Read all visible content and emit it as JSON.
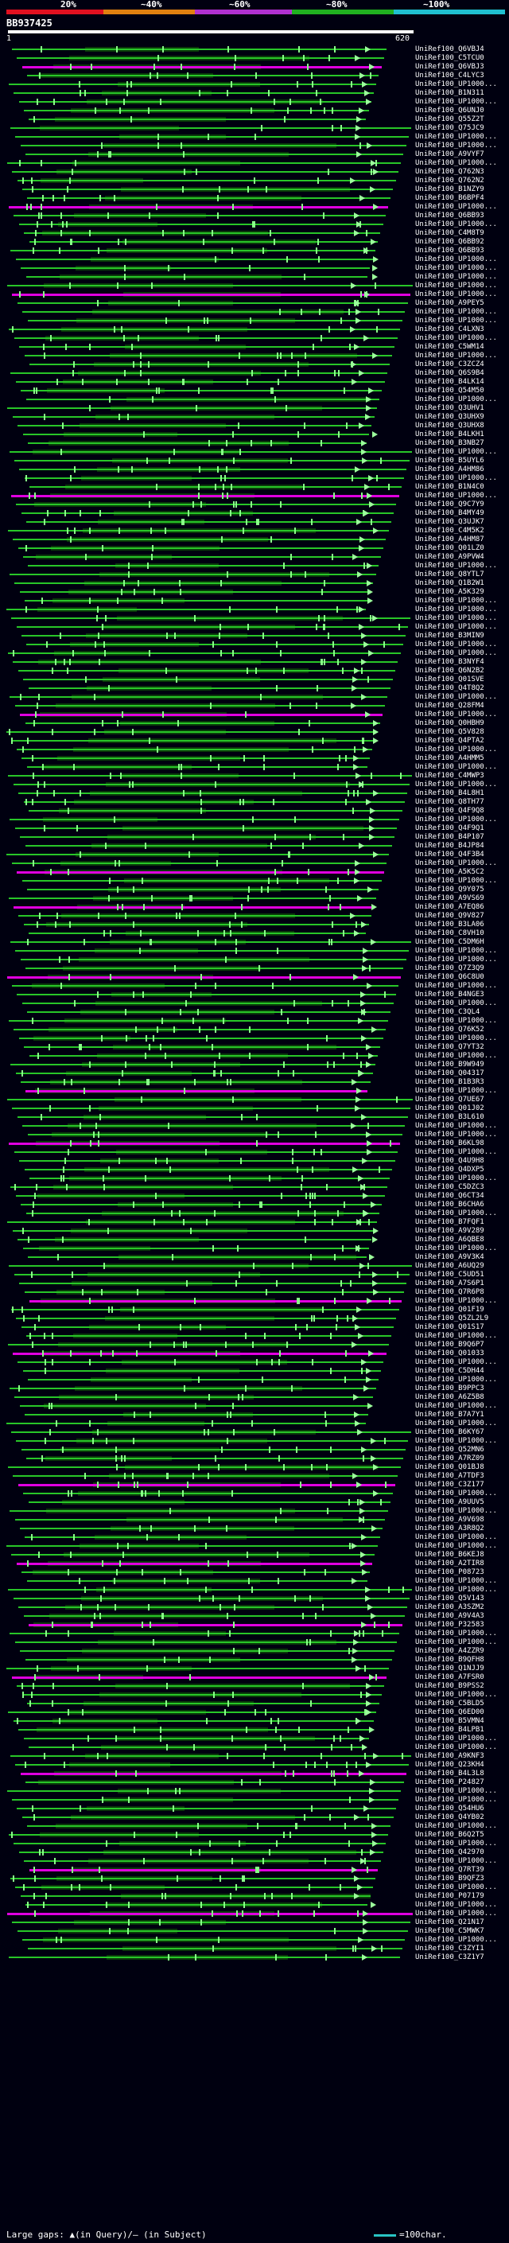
{
  "header": {
    "percent_labels": [
      "20%",
      "~40%",
      "~60%",
      "~80%",
      "~100%"
    ],
    "scale_colors": [
      "#e01020",
      "#e08010",
      "#b030d0",
      "#20b020",
      "#20c0d0"
    ],
    "query_id": "BB937425",
    "axis_start": "1",
    "axis_end": "620"
  },
  "hits": [
    {
      "label": "UniRef100_Q6VBJ4",
      "kind": "green"
    },
    {
      "label": "UniRef100_C5TCU0",
      "kind": "green"
    },
    {
      "label": "UniRef100_Q6VBJ3",
      "kind": "magenta"
    },
    {
      "label": "UniRef100_C4LYC3",
      "kind": "green"
    },
    {
      "label": "UniRef100_UP1000...",
      "kind": "green"
    },
    {
      "label": "UniRef100_B1N311",
      "kind": "green"
    },
    {
      "label": "UniRef100_UP1000...",
      "kind": "green"
    },
    {
      "label": "UniRef100_Q6UNJ0",
      "kind": "green"
    },
    {
      "label": "UniRef100_Q55Z2T",
      "kind": "green"
    },
    {
      "label": "UniRef100_Q75JC9",
      "kind": "green"
    },
    {
      "label": "UniRef100_UP1000...",
      "kind": "green"
    },
    {
      "label": "UniRef100_UP1000...",
      "kind": "green"
    },
    {
      "label": "UniRef100_A9VYF7",
      "kind": "green"
    },
    {
      "label": "UniRef100_UP1000...",
      "kind": "green"
    },
    {
      "label": "UniRef100_Q762N3",
      "kind": "green"
    },
    {
      "label": "UniRef100_Q762N2",
      "kind": "green"
    },
    {
      "label": "UniRef100_B1NZY9",
      "kind": "green"
    },
    {
      "label": "UniRef100_B6BPF4",
      "kind": "green"
    },
    {
      "label": "UniRef100_UP1000...",
      "kind": "magenta"
    },
    {
      "label": "UniRef100_Q6BB93",
      "kind": "green"
    },
    {
      "label": "UniRef100_UP1000...",
      "kind": "green"
    },
    {
      "label": "UniRef100_C4M8T9",
      "kind": "green"
    },
    {
      "label": "UniRef100_Q6BB92",
      "kind": "green"
    },
    {
      "label": "UniRef100_Q6BB93",
      "kind": "green"
    },
    {
      "label": "UniRef100_UP1000...",
      "kind": "green"
    },
    {
      "label": "UniRef100_UP1000...",
      "kind": "green"
    },
    {
      "label": "UniRef100_UP1000...",
      "kind": "green"
    },
    {
      "label": "UniRef100_UP1000...",
      "kind": "green"
    },
    {
      "label": "UniRef100_UP1000...",
      "kind": "magenta"
    },
    {
      "label": "UniRef100_A9PEY5",
      "kind": "green"
    },
    {
      "label": "UniRef100_UP1000...",
      "kind": "green"
    },
    {
      "label": "UniRef100_UP1000...",
      "kind": "green"
    },
    {
      "label": "UniRef100_C4LXN3",
      "kind": "green"
    },
    {
      "label": "UniRef100_UP1000...",
      "kind": "green"
    },
    {
      "label": "UniRef100_C5WM14",
      "kind": "green"
    },
    {
      "label": "UniRef100_UP1000...",
      "kind": "green"
    },
    {
      "label": "UniRef100_C3ZCZ4",
      "kind": "green"
    },
    {
      "label": "UniRef100_Q6S9B4",
      "kind": "green"
    },
    {
      "label": "UniRef100_B4LK14",
      "kind": "green"
    },
    {
      "label": "UniRef100_Q54M50",
      "kind": "green"
    },
    {
      "label": "UniRef100_UP1000...",
      "kind": "green"
    },
    {
      "label": "UniRef100_Q3UHV1",
      "kind": "green"
    },
    {
      "label": "UniRef100_Q3UHX9",
      "kind": "green"
    },
    {
      "label": "UniRef100_Q3UHX8",
      "kind": "green"
    },
    {
      "label": "UniRef100_B4LKH1",
      "kind": "green"
    },
    {
      "label": "UniRef100_B3NB27",
      "kind": "green"
    },
    {
      "label": "UniRef100_UP1000...",
      "kind": "green"
    },
    {
      "label": "UniRef100_B5UYL6",
      "kind": "green"
    },
    {
      "label": "UniRef100_A4HM86",
      "kind": "green"
    },
    {
      "label": "UniRef100_UP1000...",
      "kind": "green"
    },
    {
      "label": "UniRef100_B1N4C0",
      "kind": "green"
    },
    {
      "label": "UniRef100_UP1000...",
      "kind": "magenta"
    },
    {
      "label": "UniRef100_Q9C7Y9",
      "kind": "green"
    },
    {
      "label": "UniRef100_B4MY49",
      "kind": "green"
    },
    {
      "label": "UniRef100_Q3UJK7",
      "kind": "green"
    },
    {
      "label": "UniRef100_C4M5K2",
      "kind": "green"
    },
    {
      "label": "UniRef100_A4HM87",
      "kind": "green"
    },
    {
      "label": "UniRef100_Q01LZ0",
      "kind": "green"
    },
    {
      "label": "UniRef100_A9PVW4",
      "kind": "green"
    },
    {
      "label": "UniRef100_UP1000...",
      "kind": "green"
    },
    {
      "label": "UniRef100_Q8YTL7",
      "kind": "green"
    },
    {
      "label": "UniRef100_Q1B2W1",
      "kind": "green"
    },
    {
      "label": "UniRef100_A5K329",
      "kind": "green"
    },
    {
      "label": "UniRef100_UP1000...",
      "kind": "green"
    },
    {
      "label": "UniRef100_UP1000...",
      "kind": "green"
    },
    {
      "label": "UniRef100_UP1000...",
      "kind": "green"
    },
    {
      "label": "UniRef100_UP1000...",
      "kind": "green"
    },
    {
      "label": "UniRef100_B3MIN9",
      "kind": "green"
    },
    {
      "label": "UniRef100_UP1000...",
      "kind": "green"
    },
    {
      "label": "UniRef100_UP1000...",
      "kind": "green"
    },
    {
      "label": "UniRef100_B3NYF4",
      "kind": "green"
    },
    {
      "label": "UniRef100_Q6N2B2",
      "kind": "green"
    },
    {
      "label": "UniRef100_Q01SVE",
      "kind": "green"
    },
    {
      "label": "UniRef100_Q4T8Q2",
      "kind": "green"
    },
    {
      "label": "UniRef100_UP1000...",
      "kind": "green"
    },
    {
      "label": "UniRef100_Q28FM4",
      "kind": "green"
    },
    {
      "label": "UniRef100_UP1000...",
      "kind": "magenta"
    },
    {
      "label": "UniRef100_Q0HBH9",
      "kind": "green"
    },
    {
      "label": "UniRef100_Q5V828",
      "kind": "green"
    },
    {
      "label": "UniRef100_Q4PTA2",
      "kind": "green"
    },
    {
      "label": "UniRef100_UP1000...",
      "kind": "green"
    },
    {
      "label": "UniRef100_A4HMM5",
      "kind": "green"
    },
    {
      "label": "UniRef100_UP1000...",
      "kind": "green"
    },
    {
      "label": "UniRef100_C4MWP3",
      "kind": "green"
    },
    {
      "label": "UniRef100_UP1000...",
      "kind": "green"
    },
    {
      "label": "UniRef100_B4L8H1",
      "kind": "green"
    },
    {
      "label": "UniRef100_Q8TH77",
      "kind": "green"
    },
    {
      "label": "UniRef100_Q4F9Q8",
      "kind": "green"
    },
    {
      "label": "UniRef100_UP1000...",
      "kind": "green"
    },
    {
      "label": "UniRef100_Q4F9Q1",
      "kind": "green"
    },
    {
      "label": "UniRef100_B4P107",
      "kind": "green"
    },
    {
      "label": "UniRef100_B4JP84",
      "kind": "green"
    },
    {
      "label": "UniRef100_Q4F3B4",
      "kind": "green"
    },
    {
      "label": "UniRef100_UP1000...",
      "kind": "green"
    },
    {
      "label": "UniRef100_A5K5C2",
      "kind": "magenta"
    },
    {
      "label": "UniRef100_UP1000...",
      "kind": "green"
    },
    {
      "label": "UniRef100_Q9Y075",
      "kind": "green"
    },
    {
      "label": "UniRef100_A9VS69",
      "kind": "green"
    },
    {
      "label": "UniRef100_A7EQ86",
      "kind": "magenta"
    },
    {
      "label": "UniRef100_Q9V827",
      "kind": "green"
    },
    {
      "label": "UniRef100_B3LA06",
      "kind": "green"
    },
    {
      "label": "UniRef100_C8VH10",
      "kind": "green"
    },
    {
      "label": "UniRef100_C5DM6H",
      "kind": "green"
    },
    {
      "label": "UniRef100_UP1000...",
      "kind": "green"
    },
    {
      "label": "UniRef100_UP1000...",
      "kind": "green"
    },
    {
      "label": "UniRef100_Q7Z3Q9",
      "kind": "green"
    },
    {
      "label": "UniRef100_Q6C8U0",
      "kind": "magenta"
    },
    {
      "label": "UniRef100_UP1000...",
      "kind": "green"
    },
    {
      "label": "UniRef100_B4NGE3",
      "kind": "green"
    },
    {
      "label": "UniRef100_UP1000...",
      "kind": "green"
    },
    {
      "label": "UniRef100_C3QL4",
      "kind": "green"
    },
    {
      "label": "UniRef100_UP1000...",
      "kind": "green"
    },
    {
      "label": "UniRef100_Q76K52",
      "kind": "green"
    },
    {
      "label": "UniRef100_UP1000...",
      "kind": "green"
    },
    {
      "label": "UniRef100_Q7YT32",
      "kind": "green"
    },
    {
      "label": "UniRef100_UP1000...",
      "kind": "green"
    },
    {
      "label": "UniRef100_B9W949",
      "kind": "green"
    },
    {
      "label": "UniRef100_Q04317",
      "kind": "green"
    },
    {
      "label": "UniRef100_B1B3R3",
      "kind": "green"
    },
    {
      "label": "UniRef100_UP1000...",
      "kind": "magenta"
    },
    {
      "label": "UniRef100_Q7UE67",
      "kind": "green"
    },
    {
      "label": "UniRef100_Q01J02",
      "kind": "green"
    },
    {
      "label": "UniRef100_B3L610",
      "kind": "green"
    },
    {
      "label": "UniRef100_UP1000...",
      "kind": "green"
    },
    {
      "label": "UniRef100_UP1000...",
      "kind": "green"
    },
    {
      "label": "UniRef100_B6KL98",
      "kind": "magenta"
    },
    {
      "label": "UniRef100_UP1000...",
      "kind": "green"
    },
    {
      "label": "UniRef100_Q4U9H8",
      "kind": "green"
    },
    {
      "label": "UniRef100_Q4DXP5",
      "kind": "green"
    },
    {
      "label": "UniRef100_UP1000...",
      "kind": "green"
    },
    {
      "label": "UniRef100_C5DZC3",
      "kind": "green"
    },
    {
      "label": "UniRef100_Q6CT34",
      "kind": "green"
    },
    {
      "label": "UniRef100_B6CHA6",
      "kind": "green"
    },
    {
      "label": "UniRef100_UP1000...",
      "kind": "green"
    },
    {
      "label": "UniRef100_B7FQF1",
      "kind": "green"
    },
    {
      "label": "UniRef100_A9V289",
      "kind": "green"
    },
    {
      "label": "UniRef100_A6QBE8",
      "kind": "green"
    },
    {
      "label": "UniRef100_UP1000...",
      "kind": "green"
    },
    {
      "label": "UniRef100_A9V3K4",
      "kind": "green"
    },
    {
      "label": "UniRef100_A6UQ29",
      "kind": "green"
    },
    {
      "label": "UniRef100_C5UD51",
      "kind": "green"
    },
    {
      "label": "UniRef100_A7S6P1",
      "kind": "green"
    },
    {
      "label": "UniRef100_Q7R6P8",
      "kind": "green"
    },
    {
      "label": "UniRef100_UP1000...",
      "kind": "magenta"
    },
    {
      "label": "UniRef100_Q01F19",
      "kind": "green"
    },
    {
      "label": "UniRef100_Q5ZL2L9",
      "kind": "green"
    },
    {
      "label": "UniRef100_Q01S17",
      "kind": "green"
    },
    {
      "label": "UniRef100_UP1000...",
      "kind": "green"
    },
    {
      "label": "UniRef100_B9Q6P7",
      "kind": "green"
    },
    {
      "label": "UniRef100_Q01033",
      "kind": "magenta"
    },
    {
      "label": "UniRef100_UP1000...",
      "kind": "green"
    },
    {
      "label": "UniRef100_C5DH44",
      "kind": "green"
    },
    {
      "label": "UniRef100_UP1000...",
      "kind": "green"
    },
    {
      "label": "UniRef100_B9PPC3",
      "kind": "green"
    },
    {
      "label": "UniRef100_A6Z5B8",
      "kind": "green"
    },
    {
      "label": "UniRef100_UP1000...",
      "kind": "green"
    },
    {
      "label": "UniRef100_B7A7Y1",
      "kind": "green"
    },
    {
      "label": "UniRef100_UP1000...",
      "kind": "green"
    },
    {
      "label": "UniRef100_B6KY67",
      "kind": "green"
    },
    {
      "label": "UniRef100_UP1000...",
      "kind": "green"
    },
    {
      "label": "UniRef100_Q52MN6",
      "kind": "green"
    },
    {
      "label": "UniRef100_A7RZ09",
      "kind": "green"
    },
    {
      "label": "UniRef100_Q01BJ8",
      "kind": "green"
    },
    {
      "label": "UniRef100_A7TDF3",
      "kind": "green"
    },
    {
      "label": "UniRef100_C3Z177",
      "kind": "magenta"
    },
    {
      "label": "UniRef100_UP1000...",
      "kind": "green"
    },
    {
      "label": "UniRef100_A9UUV5",
      "kind": "green"
    },
    {
      "label": "UniRef100_UP1000...",
      "kind": "green"
    },
    {
      "label": "UniRef100_A9V698",
      "kind": "green"
    },
    {
      "label": "UniRef100_A3R8Q2",
      "kind": "green"
    },
    {
      "label": "UniRef100_UP1000...",
      "kind": "green"
    },
    {
      "label": "UniRef100_UP1000...",
      "kind": "green"
    },
    {
      "label": "UniRef100_B6KEJ8",
      "kind": "green"
    },
    {
      "label": "UniRef100_A2TIR8",
      "kind": "magenta"
    },
    {
      "label": "UniRef100_P08723",
      "kind": "green"
    },
    {
      "label": "UniRef100_UP1000...",
      "kind": "green"
    },
    {
      "label": "UniRef100_UP1000...",
      "kind": "green"
    },
    {
      "label": "UniRef100_Q5V143",
      "kind": "green"
    },
    {
      "label": "UniRef100_A3SZM2",
      "kind": "green"
    },
    {
      "label": "UniRef100_A9V4A3",
      "kind": "green"
    },
    {
      "label": "UniRef100_P32583",
      "kind": "magenta"
    },
    {
      "label": "UniRef100_UP1000...",
      "kind": "green"
    },
    {
      "label": "UniRef100_UP1000...",
      "kind": "green"
    },
    {
      "label": "UniRef100_A4ZZR9",
      "kind": "green"
    },
    {
      "label": "UniRef100_B9QFH8",
      "kind": "green"
    },
    {
      "label": "UniRef100_Q1NJJ9",
      "kind": "green"
    },
    {
      "label": "UniRef100_A7FSR0",
      "kind": "magenta"
    },
    {
      "label": "UniRef100_B9PSS2",
      "kind": "green"
    },
    {
      "label": "UniRef100_UP1000...",
      "kind": "green"
    },
    {
      "label": "UniRef100_C5BLD5",
      "kind": "green"
    },
    {
      "label": "UniRef100_Q6ED00",
      "kind": "green"
    },
    {
      "label": "UniRef100_B5VMN4",
      "kind": "green"
    },
    {
      "label": "UniRef100_B4LPB1",
      "kind": "green"
    },
    {
      "label": "UniRef100_UP1000...",
      "kind": "green"
    },
    {
      "label": "UniRef100_UP1000...",
      "kind": "green"
    },
    {
      "label": "UniRef100_A9KNF3",
      "kind": "green"
    },
    {
      "label": "UniRef100_Q23KH4",
      "kind": "green"
    },
    {
      "label": "UniRef100_B4L3L8",
      "kind": "magenta"
    },
    {
      "label": "UniRef100_P24827",
      "kind": "green"
    },
    {
      "label": "UniRef100_UP1000...",
      "kind": "green"
    },
    {
      "label": "UniRef100_UP1000...",
      "kind": "green"
    },
    {
      "label": "UniRef100_Q54HU6",
      "kind": "green"
    },
    {
      "label": "UniRef100_Q4YB02",
      "kind": "green"
    },
    {
      "label": "UniRef100_UP1000...",
      "kind": "green"
    },
    {
      "label": "UniRef100_B6Q2T5",
      "kind": "green"
    },
    {
      "label": "UniRef100_UP1000...",
      "kind": "green"
    },
    {
      "label": "UniRef100_Q42970",
      "kind": "green"
    },
    {
      "label": "UniRef100_UP1000...",
      "kind": "green"
    },
    {
      "label": "UniRef100_Q7RT39",
      "kind": "magenta"
    },
    {
      "label": "UniRef100_B9QFZ3",
      "kind": "green"
    },
    {
      "label": "UniRef100_UP1000...",
      "kind": "green"
    },
    {
      "label": "UniRef100_P07179",
      "kind": "green"
    },
    {
      "label": "UniRef100_UP1000...",
      "kind": "green"
    },
    {
      "label": "UniRef100_UP1000...",
      "kind": "magenta"
    },
    {
      "label": "UniRef100_Q21N17",
      "kind": "green"
    },
    {
      "label": "UniRef100_C5MWK7",
      "kind": "green"
    },
    {
      "label": "UniRef100_UP1000...",
      "kind": "green"
    },
    {
      "label": "UniRef100_C3ZYI1",
      "kind": "green"
    },
    {
      "label": "UniRef100_C3Z1Y7",
      "kind": "green"
    }
  ],
  "footer": {
    "gaps_legend": "Large gaps: ▲(in Query)/— (in Subject)",
    "scale_legend": "=100char."
  }
}
